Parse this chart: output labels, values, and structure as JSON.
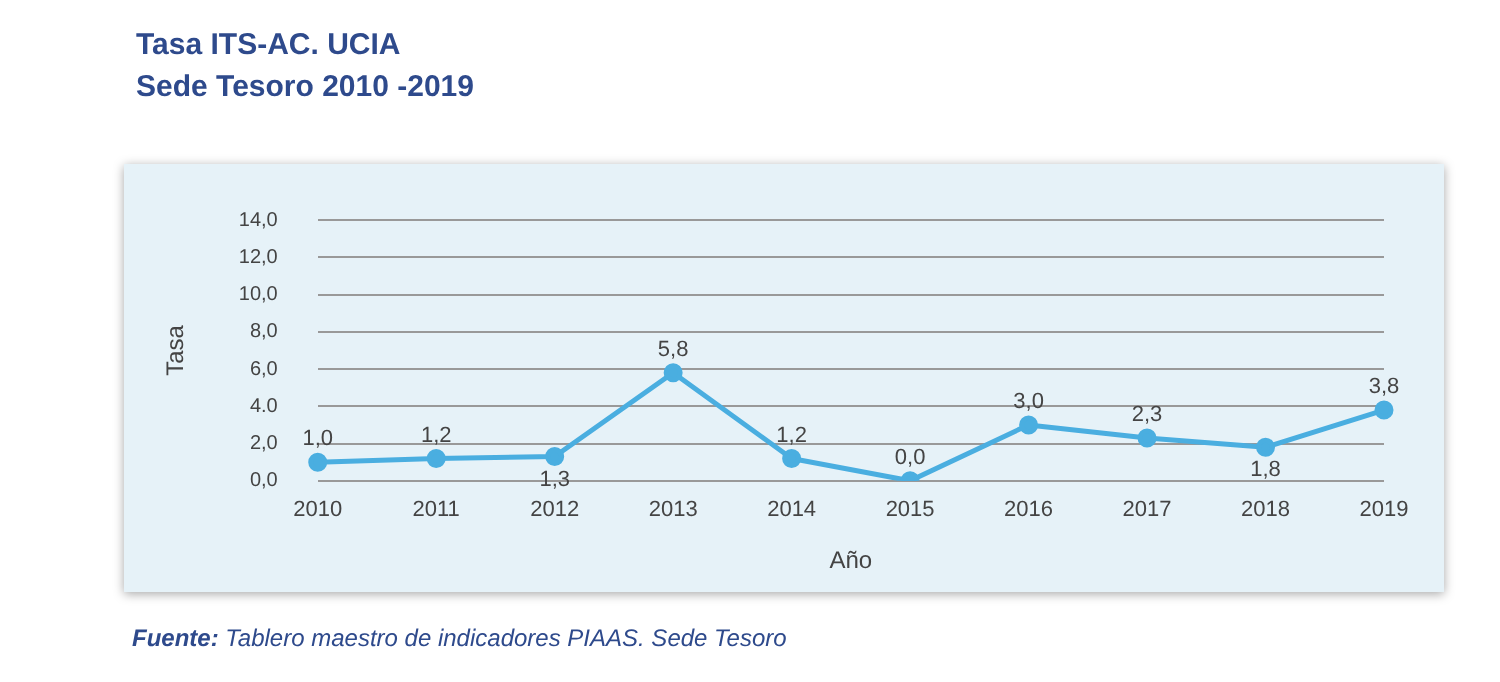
{
  "chart_data": {
    "type": "line",
    "title": "Tasa ITS-AC. UCIA",
    "subtitle": "Sede Tesoro 2010 -2019",
    "xlabel": "Año",
    "ylabel": "Tasa",
    "categories": [
      "2010",
      "2011",
      "2012",
      "2013",
      "2014",
      "2015",
      "2016",
      "2017",
      "2018",
      "2019"
    ],
    "series": [
      {
        "color": "#4aaee0",
        "values": [
          1.0,
          1.2,
          1.3,
          5.8,
          1.2,
          0.0,
          3.0,
          2.3,
          1.8,
          3.8
        ],
        "value_labels": [
          "1,0",
          "1,2",
          "1,3",
          "5,8",
          "1,2",
          "0,0",
          "3,0",
          "2,3",
          "1,8",
          "3,8"
        ]
      }
    ],
    "ylim": [
      0,
      14
    ],
    "yticks": [
      {
        "value": 0,
        "label": "0,0"
      },
      {
        "value": 2,
        "label": "2,0"
      },
      {
        "value": 4,
        "label": "4.0"
      },
      {
        "value": 6,
        "label": "6,0"
      },
      {
        "value": 8,
        "label": "8,0"
      },
      {
        "value": 10,
        "label": "10,0"
      },
      {
        "value": 12,
        "label": "12,0"
      },
      {
        "value": 14,
        "label": "14,0"
      }
    ],
    "grid": "y",
    "legend": false,
    "marker": "circle",
    "line_style": "solid",
    "annotations": [
      "Fuente: Tablero maestro de indicadores PIAAS. Sede Tesoro"
    ]
  }
}
